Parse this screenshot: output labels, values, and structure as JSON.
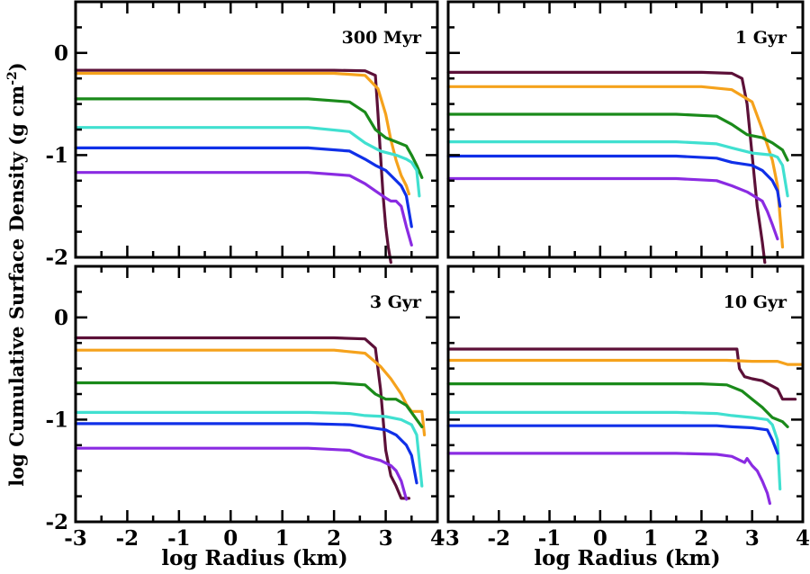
{
  "figure": {
    "ylabel": "log Cumulative Surface Density (g cm",
    "ylabel_sup": "-2",
    "ylabel_close": ")",
    "xlabel": "log Radius (km)"
  },
  "colors": {
    "maroon": "#5c1038",
    "orange": "#f5a21c",
    "green": "#1a8a1a",
    "cyan": "#40e0d0",
    "blue": "#1030e8",
    "purple": "#8a2be2"
  },
  "chart_data": [
    {
      "type": "line",
      "title": "300 Myr",
      "xlim": [
        -3,
        4
      ],
      "ylim": [
        -2,
        0.5
      ],
      "xticks": [
        "-3",
        "-2",
        "-1",
        "0",
        "1",
        "2",
        "3",
        "4"
      ],
      "yticks": [
        "-2",
        "-1",
        "0"
      ],
      "series": [
        {
          "name": "maroon",
          "x": [
            -3,
            2.0,
            2.6,
            2.8,
            2.85,
            2.9,
            2.95,
            3.0,
            3.05,
            3.1
          ],
          "y": [
            -0.17,
            -0.17,
            -0.175,
            -0.22,
            -0.6,
            -1.0,
            -1.4,
            -1.7,
            -1.9,
            -2.05
          ]
        },
        {
          "name": "orange",
          "x": [
            -3,
            2.0,
            2.6,
            2.85,
            3.0,
            3.1,
            3.2,
            3.3,
            3.4,
            3.45
          ],
          "y": [
            -0.2,
            -0.2,
            -0.22,
            -0.35,
            -0.6,
            -0.85,
            -1.05,
            -1.2,
            -1.3,
            -1.38
          ]
        },
        {
          "name": "green",
          "x": [
            -3,
            1.5,
            2.3,
            2.6,
            2.8,
            3.0,
            3.2,
            3.4,
            3.5,
            3.6,
            3.7
          ],
          "y": [
            -0.45,
            -0.45,
            -0.48,
            -0.58,
            -0.75,
            -0.83,
            -0.87,
            -0.91,
            -1.0,
            -1.1,
            -1.22
          ]
        },
        {
          "name": "cyan",
          "x": [
            -3,
            1.5,
            2.3,
            2.6,
            2.9,
            3.2,
            3.4,
            3.5,
            3.6,
            3.65
          ],
          "y": [
            -0.73,
            -0.73,
            -0.77,
            -0.88,
            -0.96,
            -1.0,
            -1.04,
            -1.07,
            -1.15,
            -1.4
          ]
        },
        {
          "name": "blue",
          "x": [
            -3,
            1.5,
            2.3,
            2.6,
            2.8,
            3.0,
            3.2,
            3.3,
            3.4,
            3.45,
            3.5
          ],
          "y": [
            -0.93,
            -0.93,
            -0.96,
            -1.04,
            -1.1,
            -1.15,
            -1.25,
            -1.3,
            -1.4,
            -1.55,
            -1.7
          ]
        },
        {
          "name": "purple",
          "x": [
            -3,
            1.5,
            2.3,
            2.6,
            2.8,
            3.0,
            3.1,
            3.2,
            3.3,
            3.4,
            3.5
          ],
          "y": [
            -1.17,
            -1.17,
            -1.2,
            -1.28,
            -1.35,
            -1.42,
            -1.45,
            -1.45,
            -1.5,
            -1.7,
            -1.88
          ]
        }
      ]
    },
    {
      "type": "line",
      "title": "1 Gyr",
      "xlim": [
        -3,
        4
      ],
      "ylim": [
        -2,
        0.5
      ],
      "xticks": [
        "-3",
        "-2",
        "-1",
        "0",
        "1",
        "2",
        "3",
        "4"
      ],
      "yticks": [
        "-2",
        "-1",
        "0"
      ],
      "series": [
        {
          "name": "maroon",
          "x": [
            -3,
            2.0,
            2.6,
            2.8,
            2.9,
            3.0,
            3.1,
            3.2,
            3.25
          ],
          "y": [
            -0.19,
            -0.19,
            -0.2,
            -0.25,
            -0.5,
            -1.0,
            -1.5,
            -1.85,
            -2.05
          ]
        },
        {
          "name": "orange",
          "x": [
            -3,
            2.0,
            2.6,
            3.0,
            3.2,
            3.4,
            3.5,
            3.55,
            3.6
          ],
          "y": [
            -0.33,
            -0.33,
            -0.36,
            -0.48,
            -0.75,
            -1.05,
            -1.3,
            -1.6,
            -1.9
          ]
        },
        {
          "name": "green",
          "x": [
            -3,
            1.5,
            2.3,
            2.6,
            2.9,
            3.2,
            3.4,
            3.6,
            3.7
          ],
          "y": [
            -0.6,
            -0.6,
            -0.62,
            -0.7,
            -0.8,
            -0.83,
            -0.88,
            -0.95,
            -1.05
          ]
        },
        {
          "name": "cyan",
          "x": [
            -3,
            1.5,
            2.3,
            2.6,
            3.0,
            3.4,
            3.5,
            3.6,
            3.7
          ],
          "y": [
            -0.87,
            -0.87,
            -0.89,
            -0.93,
            -0.98,
            -1.0,
            -1.02,
            -1.1,
            -1.4
          ]
        },
        {
          "name": "blue",
          "x": [
            -3,
            1.5,
            2.3,
            2.6,
            3.0,
            3.2,
            3.4,
            3.5,
            3.55
          ],
          "y": [
            -1.01,
            -1.01,
            -1.03,
            -1.07,
            -1.1,
            -1.15,
            -1.25,
            -1.35,
            -1.5
          ]
        },
        {
          "name": "purple",
          "x": [
            -3,
            1.5,
            2.3,
            2.6,
            2.9,
            3.2,
            3.3,
            3.4,
            3.5
          ],
          "y": [
            -1.23,
            -1.23,
            -1.25,
            -1.3,
            -1.36,
            -1.45,
            -1.55,
            -1.68,
            -1.82
          ]
        }
      ]
    },
    {
      "type": "line",
      "title": "3 Gyr",
      "xlim": [
        -3,
        4
      ],
      "ylim": [
        -2,
        0.5
      ],
      "xticks": [
        "-3",
        "-2",
        "-1",
        "0",
        "1",
        "2",
        "3",
        "4"
      ],
      "yticks": [
        "-2",
        "-1",
        "0"
      ],
      "series": [
        {
          "name": "maroon",
          "x": [
            -3,
            2.0,
            2.6,
            2.8,
            2.9,
            3.0,
            3.1,
            3.2,
            3.3,
            3.45
          ],
          "y": [
            -0.2,
            -0.2,
            -0.21,
            -0.3,
            -0.7,
            -1.3,
            -1.55,
            -1.65,
            -1.77,
            -1.77
          ]
        },
        {
          "name": "orange",
          "x": [
            -3,
            2.0,
            2.6,
            2.9,
            3.1,
            3.3,
            3.4,
            3.5,
            3.6,
            3.7,
            3.75
          ],
          "y": [
            -0.32,
            -0.32,
            -0.35,
            -0.48,
            -0.6,
            -0.75,
            -0.85,
            -0.92,
            -0.92,
            -0.92,
            -1.15
          ]
        },
        {
          "name": "green",
          "x": [
            -3,
            2.0,
            2.6,
            2.8,
            3.0,
            3.2,
            3.4,
            3.6,
            3.7
          ],
          "y": [
            -0.64,
            -0.64,
            -0.66,
            -0.75,
            -0.8,
            -0.8,
            -0.86,
            -1.0,
            -1.07
          ]
        },
        {
          "name": "cyan",
          "x": [
            -3,
            1.5,
            2.3,
            2.6,
            3.0,
            3.3,
            3.5,
            3.6,
            3.7
          ],
          "y": [
            -0.93,
            -0.93,
            -0.94,
            -0.96,
            -0.97,
            -1.0,
            -1.05,
            -1.15,
            -1.65
          ]
        },
        {
          "name": "blue",
          "x": [
            -3,
            1.5,
            2.3,
            2.6,
            3.0,
            3.2,
            3.4,
            3.5,
            3.6
          ],
          "y": [
            -1.04,
            -1.04,
            -1.05,
            -1.07,
            -1.1,
            -1.15,
            -1.25,
            -1.35,
            -1.62
          ]
        },
        {
          "name": "purple",
          "x": [
            -3,
            1.5,
            2.3,
            2.6,
            2.9,
            3.1,
            3.2,
            3.3,
            3.4
          ],
          "y": [
            -1.28,
            -1.28,
            -1.3,
            -1.36,
            -1.4,
            -1.45,
            -1.5,
            -1.6,
            -1.78
          ]
        }
      ]
    },
    {
      "type": "line",
      "title": "10 Gyr",
      "xlim": [
        -3,
        4
      ],
      "ylim": [
        -2,
        0.5
      ],
      "xticks": [
        "-3",
        "-2",
        "-1",
        "0",
        "1",
        "2",
        "3",
        "4"
      ],
      "yticks": [
        "-2",
        "-1",
        "0"
      ],
      "series": [
        {
          "name": "maroon",
          "x": [
            -3,
            2.5,
            2.7,
            2.75,
            2.85,
            3.0,
            3.2,
            3.5,
            3.6,
            3.7,
            3.85
          ],
          "y": [
            -0.31,
            -0.31,
            -0.31,
            -0.5,
            -0.58,
            -0.6,
            -0.62,
            -0.7,
            -0.8,
            -0.8,
            -0.8
          ]
        },
        {
          "name": "orange",
          "x": [
            -3,
            2.5,
            3.0,
            3.5,
            3.7,
            3.85,
            4.0
          ],
          "y": [
            -0.42,
            -0.42,
            -0.43,
            -0.43,
            -0.46,
            -0.46,
            -0.46
          ]
        },
        {
          "name": "green",
          "x": [
            -3,
            2.0,
            2.5,
            2.8,
            3.0,
            3.2,
            3.4,
            3.6,
            3.7
          ],
          "y": [
            -0.65,
            -0.65,
            -0.66,
            -0.72,
            -0.8,
            -0.88,
            -0.98,
            -1.02,
            -1.07
          ]
        },
        {
          "name": "cyan",
          "x": [
            -3,
            1.5,
            2.3,
            2.6,
            3.0,
            3.3,
            3.4,
            3.5,
            3.55
          ],
          "y": [
            -0.93,
            -0.93,
            -0.94,
            -0.96,
            -0.98,
            -1.0,
            -1.05,
            -1.2,
            -1.68
          ]
        },
        {
          "name": "blue",
          "x": [
            -3,
            1.5,
            2.3,
            2.6,
            3.0,
            3.3,
            3.4,
            3.5
          ],
          "y": [
            -1.06,
            -1.06,
            -1.06,
            -1.07,
            -1.08,
            -1.1,
            -1.2,
            -1.33
          ]
        },
        {
          "name": "purple",
          "x": [
            -3,
            1.5,
            2.3,
            2.6,
            2.85,
            2.9,
            3.0,
            3.1,
            3.2,
            3.3,
            3.35
          ],
          "y": [
            -1.33,
            -1.33,
            -1.34,
            -1.36,
            -1.42,
            -1.38,
            -1.45,
            -1.5,
            -1.6,
            -1.72,
            -1.82
          ]
        }
      ]
    }
  ]
}
